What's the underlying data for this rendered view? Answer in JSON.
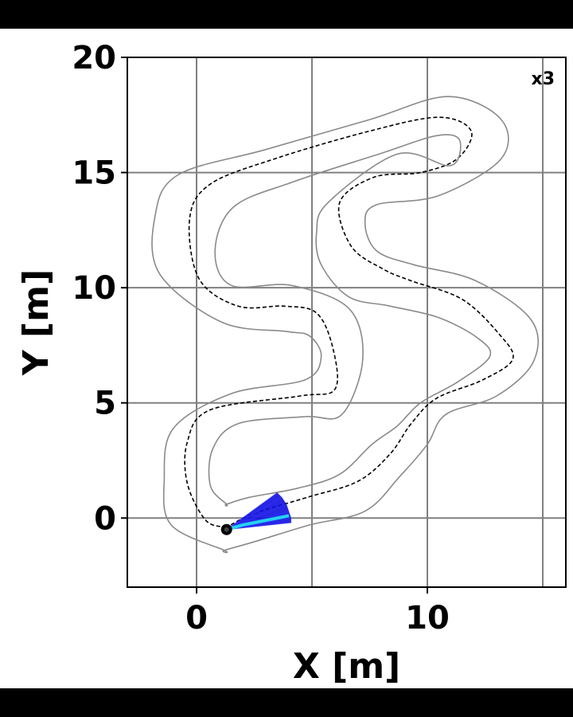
{
  "chart_data": {
    "type": "line",
    "xlabel": "X [m]",
    "ylabel": "Y [m]",
    "speed_badge": "x3",
    "xlim": [
      -3,
      16
    ],
    "ylim": [
      -3,
      20
    ],
    "grid": true,
    "x_ticks": [
      0,
      10
    ],
    "x_tick_labels": [
      "0",
      "10"
    ],
    "y_ticks": [
      0,
      5,
      10,
      15,
      20
    ],
    "y_tick_labels": [
      "0",
      "5",
      "10",
      "15",
      "20"
    ],
    "colors": {
      "track_boundary": "#8a8a8a",
      "centerline": "#000000",
      "predicted_trajectories": "#1010e0",
      "vehicle_trajectory": "#22d3ee",
      "vehicle_marker": "#000000",
      "grid": "#808080"
    },
    "series": [
      {
        "key": "centerline",
        "style": "dashed",
        "x": [
          1.3,
          0.4,
          -0.4,
          -0.4,
          0.6,
          4.5,
          6.0,
          5.9,
          5.2,
          3.8,
          1.8,
          0.1,
          -0.3,
          0.6,
          3.4,
          7.5,
          10.5,
          11.9,
          11.3,
          9.7,
          7.7,
          6.2,
          6.7,
          8.1,
          9.3,
          11.5,
          13.1,
          13.7,
          12.4,
          10.4,
          9.3,
          8.4,
          7.0,
          4.8,
          2.5,
          1.3
        ],
        "y": [
          -0.4,
          -0.1,
          1.5,
          3.3,
          4.7,
          5.3,
          5.6,
          7.4,
          8.9,
          9.2,
          9.2,
          10.4,
          13.0,
          14.5,
          15.6,
          16.8,
          17.4,
          16.8,
          15.6,
          15.0,
          14.8,
          13.7,
          11.8,
          10.8,
          10.3,
          9.5,
          8.0,
          6.9,
          6.0,
          5.2,
          4.1,
          2.8,
          1.6,
          0.9,
          0.2,
          -0.4
        ]
      },
      {
        "key": "outer_boundary",
        "style": "solid",
        "x": [
          1.2,
          -1.1,
          -1.4,
          -1.0,
          1.5,
          4.7,
          5.4,
          4.9,
          3.9,
          1.1,
          -1.6,
          -1.8,
          -0.8,
          3.0,
          7.5,
          10.9,
          13.2,
          13.2,
          10.5,
          7.8,
          7.3,
          7.8,
          9.4,
          12.1,
          14.5,
          14.6,
          13.0,
          10.8,
          10.0,
          8.8,
          7.3,
          4.9,
          2.6,
          1.2
        ],
        "y": [
          -1.4,
          -0.3,
          1.7,
          3.9,
          5.4,
          6.0,
          7.0,
          7.9,
          8.1,
          8.5,
          10.6,
          13.1,
          14.9,
          16.0,
          17.3,
          18.3,
          17.3,
          15.6,
          14.0,
          13.6,
          12.8,
          11.6,
          11.0,
          10.3,
          8.6,
          6.8,
          5.3,
          4.5,
          3.2,
          1.8,
          0.3,
          -0.3,
          -1.0,
          -1.4
        ]
      },
      {
        "key": "inner_boundary",
        "style": "solid",
        "x": [
          1.3,
          0.6,
          0.7,
          1.8,
          4.7,
          6.3,
          7.2,
          6.6,
          4.1,
          1.5,
          0.8,
          1.6,
          4.2,
          7.9,
          10.4,
          11.4,
          11.0,
          8.7,
          5.7,
          5.2,
          5.4,
          6.6,
          8.4,
          10.5,
          12.2,
          12.7,
          11.3,
          9.7,
          8.7,
          7.6,
          6.2,
          4.4,
          2.3,
          1.3
        ],
        "y": [
          0.6,
          1.4,
          3.0,
          4.1,
          4.4,
          4.5,
          6.9,
          9.1,
          10.1,
          10.1,
          11.6,
          13.5,
          14.6,
          15.8,
          16.6,
          16.4,
          15.3,
          15.8,
          13.7,
          12.4,
          11.0,
          9.6,
          9.2,
          8.7,
          7.8,
          7.0,
          5.9,
          5.0,
          4.0,
          3.2,
          1.9,
          1.3,
          0.9,
          0.6
        ]
      }
    ],
    "vehicle_position": {
      "x": 1.3,
      "y": -0.5
    },
    "vehicle_trajectory": {
      "x": [
        1.3,
        2.0,
        3.0,
        4.0
      ],
      "y": [
        -0.5,
        -0.3,
        -0.1,
        0.1
      ]
    },
    "predicted_fan": {
      "origin": {
        "x": 1.3,
        "y": -0.5
      },
      "endpoints_x": [
        3.5,
        3.7,
        3.9,
        4.0,
        4.1,
        4.1
      ],
      "endpoints_y": [
        1.1,
        0.9,
        0.6,
        0.3,
        0.0,
        -0.2
      ]
    }
  }
}
